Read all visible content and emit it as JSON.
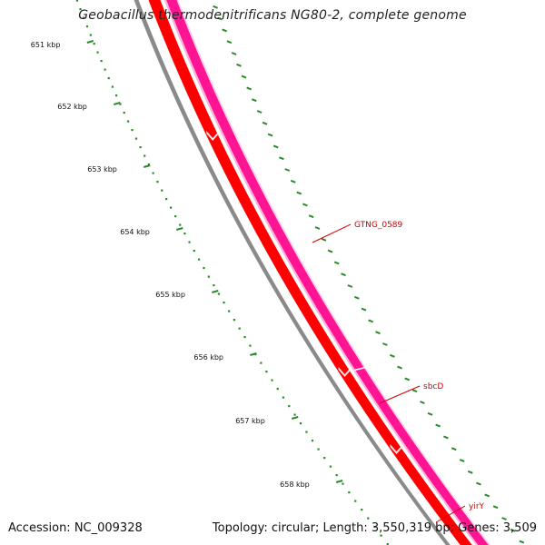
{
  "title": "Geobacillus thermodenitrificans NG80-2, complete genome",
  "footer": {
    "accession": "Accession: NC_009328",
    "topology": "Topology: circular; Length: 3,550,319 bp; Genes: 3,509"
  },
  "colors": {
    "backbone": "#8a8a8a",
    "cds_forward": "#ff0000",
    "cds_reverse": "#ff1493",
    "ticks": "#2a8a2a",
    "gene_label": "#d40000"
  },
  "ruler": {
    "labels": [
      "651 kbp",
      "652 kbp",
      "653 kbp",
      "654 kbp",
      "655 kbp",
      "656 kbp",
      "657 kbp",
      "658 kbp"
    ]
  },
  "genes": [
    {
      "name": "GTNG_0589"
    },
    {
      "name": "sbcD"
    },
    {
      "name": "yirY"
    }
  ]
}
